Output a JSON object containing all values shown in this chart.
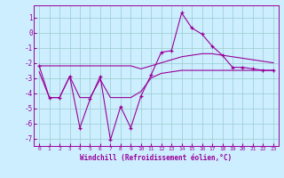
{
  "x": [
    0,
    1,
    2,
    3,
    4,
    5,
    6,
    7,
    8,
    9,
    10,
    11,
    12,
    13,
    14,
    15,
    16,
    17,
    18,
    19,
    20,
    21,
    22,
    23
  ],
  "y_main": [
    -2.2,
    -4.3,
    -4.3,
    -2.9,
    -6.3,
    -4.4,
    -2.9,
    -7.1,
    -4.9,
    -6.3,
    -4.2,
    -2.8,
    -1.3,
    -1.2,
    1.3,
    0.3,
    -0.1,
    -0.9,
    -1.5,
    -2.3,
    -2.3,
    -2.4,
    -2.5,
    -2.5
  ],
  "y_upper": [
    -2.2,
    -2.2,
    -2.2,
    -2.2,
    -2.2,
    -2.2,
    -2.2,
    -2.2,
    -2.2,
    -2.2,
    -2.4,
    -2.2,
    -2.0,
    -1.8,
    -1.6,
    -1.5,
    -1.4,
    -1.4,
    -1.5,
    -1.6,
    -1.7,
    -1.8,
    -1.9,
    -2.0
  ],
  "y_lower": [
    -2.6,
    -4.3,
    -4.3,
    -2.9,
    -4.3,
    -4.3,
    -3.1,
    -4.3,
    -4.3,
    -4.3,
    -3.9,
    -3.0,
    -2.7,
    -2.6,
    -2.5,
    -2.5,
    -2.5,
    -2.5,
    -2.5,
    -2.5,
    -2.5,
    -2.5,
    -2.5,
    -2.5
  ],
  "line_color": "#990099",
  "bg_color": "#cceeff",
  "grid_color": "#99cccc",
  "xlabel": "Windchill (Refroidissement éolien,°C)",
  "ylim": [
    -7.5,
    1.8
  ],
  "xlim": [
    -0.5,
    23.5
  ],
  "yticks": [
    1,
    0,
    -1,
    -2,
    -3,
    -4,
    -5,
    -6,
    -7
  ],
  "xticks": [
    0,
    1,
    2,
    3,
    4,
    5,
    6,
    7,
    8,
    9,
    10,
    11,
    12,
    13,
    14,
    15,
    16,
    17,
    18,
    19,
    20,
    21,
    22,
    23
  ]
}
